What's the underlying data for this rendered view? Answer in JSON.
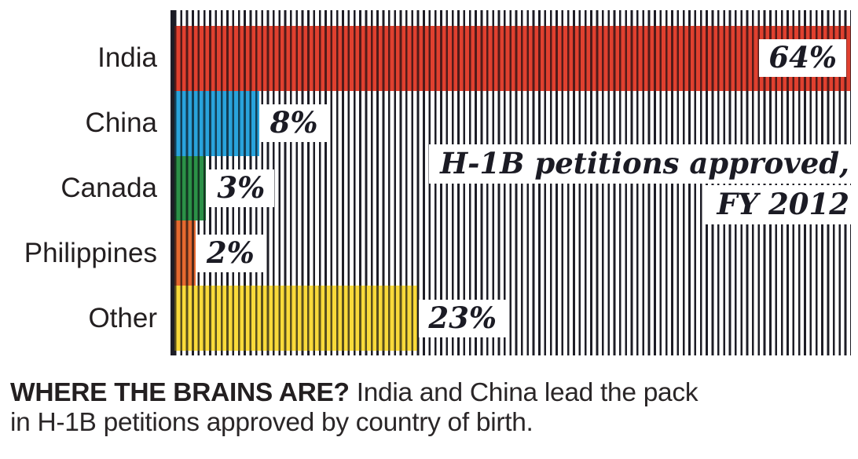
{
  "chart_data": {
    "type": "bar",
    "orientation": "horizontal",
    "title_lines": [
      "H-1B petitions approved,",
      "FY 2012"
    ],
    "categories": [
      "India",
      "China",
      "Canada",
      "Philippines",
      "Other"
    ],
    "values": [
      64,
      8,
      3,
      2,
      23
    ],
    "value_labels": [
      "64%",
      "8%",
      "3%",
      "2%",
      "23%"
    ],
    "bar_colors": [
      "#e0402f",
      "#29a3dc",
      "#2b9147",
      "#e5692f",
      "#f9da3a"
    ],
    "value_label_placement": [
      "inside-right",
      "outside",
      "outside",
      "outside",
      "outside"
    ],
    "xlim": [
      0,
      64
    ],
    "xlabel": "",
    "ylabel": "",
    "grid": "vertical-pinstripe",
    "legend": "none"
  },
  "caption": {
    "line1_bold": "WHERE THE BRAINS ARE?",
    "line1_regular": " India and China lead the pack",
    "line2": "in H-1B petitions approved by country of birth."
  },
  "colors": {
    "ink": "#1d1d26",
    "background": "#ffffff",
    "label_box": "#ffffff",
    "india": "#e0402f",
    "china": "#29a3dc",
    "canada": "#2b9147",
    "philippines": "#e5692f",
    "other": "#f9da3a"
  }
}
